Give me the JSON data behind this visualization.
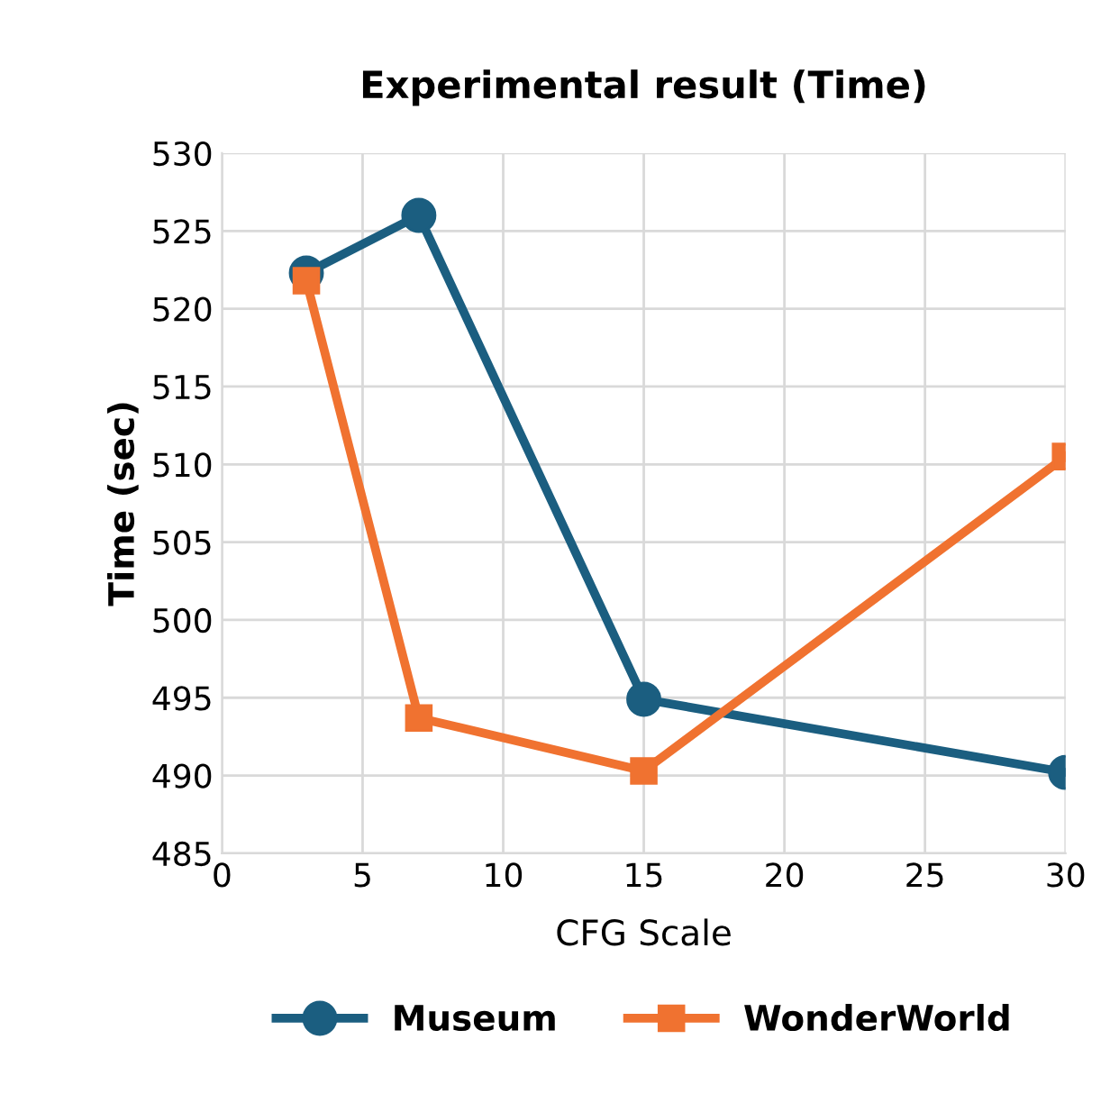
{
  "chart_data": {
    "type": "line",
    "title": "Experimental result (Time)",
    "xlabel": "CFG Scale",
    "ylabel": "Time (sec)",
    "x": [
      3,
      7,
      15,
      30
    ],
    "series": [
      {
        "name": "Museum",
        "color": "#1b5e80",
        "marker": "circle",
        "values": [
          522.3,
          526.0,
          494.9,
          490.2
        ]
      },
      {
        "name": "WonderWorld",
        "color": "#f07230",
        "marker": "square",
        "values": [
          521.8,
          493.7,
          490.3,
          510.5
        ]
      }
    ],
    "xlim": [
      0,
      30
    ],
    "xticks": [
      0,
      5,
      10,
      15,
      20,
      25,
      30
    ],
    "ylim": [
      485,
      530
    ],
    "yticks": [
      485,
      490,
      495,
      500,
      505,
      510,
      515,
      520,
      525,
      530
    ],
    "grid": true,
    "legend": "bottom",
    "line_style": "solid"
  }
}
